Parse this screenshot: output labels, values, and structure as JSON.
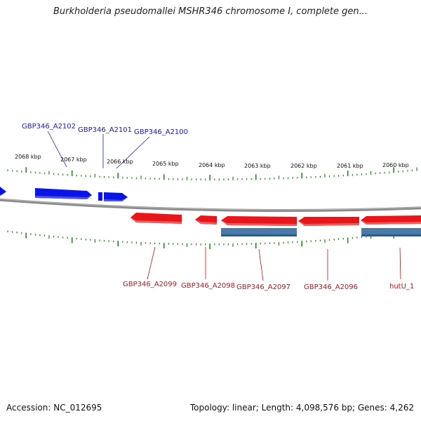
{
  "title": "Burkholderia pseudomallei MSHR346 chromosome I, complete gen...",
  "kbp_ticks": [
    "2068 kbp",
    "2067 kbp",
    "2066 kbp",
    "2065 kbp",
    "2064 kbp",
    "2063 kbp",
    "2062 kbp",
    "2061 kbp",
    "2060 kbp"
  ],
  "top_genes": [
    {
      "label": "GBP346_A2102"
    },
    {
      "label": "GBP346_A2101"
    },
    {
      "label": "GBP346_A2100"
    }
  ],
  "bottom_genes": [
    {
      "label": "GBP346_A2099"
    },
    {
      "label": "GBP346_A2098"
    },
    {
      "label": "GBP346_A2097"
    },
    {
      "label": "GBP346_A2096"
    },
    {
      "label": "hutU_1"
    }
  ],
  "colors": {
    "forward_gene": "#0b14e6",
    "reverse_gene": "#e8151b",
    "reverse_gene_light": "#f05a5a",
    "cds_bar": "#4a7aa8",
    "tick": "#1e8a1e",
    "backbone": "#8a8a8a",
    "top_label": "#1a1aa8",
    "bottom_label": "#b0181c"
  },
  "footer": {
    "accession": "Accession: NC_012695",
    "summary": "Topology: linear; Length: 4,098,576 bp; Genes: 4,262"
  }
}
